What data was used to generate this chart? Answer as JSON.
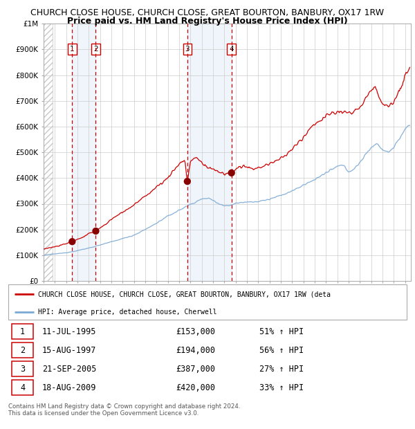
{
  "title1": "CHURCH CLOSE HOUSE, CHURCH CLOSE, GREAT BOURTON, BANBURY, OX17 1RW",
  "title2": "Price paid vs. HM Land Registry's House Price Index (HPI)",
  "ylim": [
    0,
    1000000
  ],
  "yticks": [
    0,
    100000,
    200000,
    300000,
    400000,
    500000,
    600000,
    700000,
    800000,
    900000,
    1000000
  ],
  "ytick_labels": [
    "£0",
    "£100K",
    "£200K",
    "£300K",
    "£400K",
    "£500K",
    "£600K",
    "£700K",
    "£800K",
    "£900K",
    "£1M"
  ],
  "xlim_start": 1993.0,
  "xlim_end": 2025.5,
  "sale_dates": [
    1995.53,
    1997.62,
    2005.72,
    2009.63
  ],
  "sale_prices": [
    153000,
    194000,
    387000,
    420000
  ],
  "sale_labels": [
    "1",
    "2",
    "3",
    "4"
  ],
  "sale_info": [
    {
      "label": "1",
      "date": "11-JUL-1995",
      "price": "£153,000",
      "hpi": "51% ↑ HPI"
    },
    {
      "label": "2",
      "date": "15-AUG-1997",
      "price": "£194,000",
      "hpi": "56% ↑ HPI"
    },
    {
      "label": "3",
      "date": "21-SEP-2005",
      "price": "£387,000",
      "hpi": "27% ↑ HPI"
    },
    {
      "label": "4",
      "date": "18-AUG-2009",
      "price": "£420,000",
      "hpi": "33% ↑ HPI"
    }
  ],
  "red_line_color": "#cc0000",
  "blue_line_color": "#7aa8d4",
  "sale_marker_color": "#880000",
  "dashed_line_color": "#cc0000",
  "legend_label_red": "CHURCH CLOSE HOUSE, CHURCH CLOSE, GREAT BOURTON, BANBURY, OX17 1RW (deta",
  "legend_label_blue": "HPI: Average price, detached house, Cherwell",
  "footer": "Contains HM Land Registry data © Crown copyright and database right 2024.\nThis data is licensed under the Open Government Licence v3.0.",
  "title_fontsize": 9,
  "subtitle_fontsize": 9
}
